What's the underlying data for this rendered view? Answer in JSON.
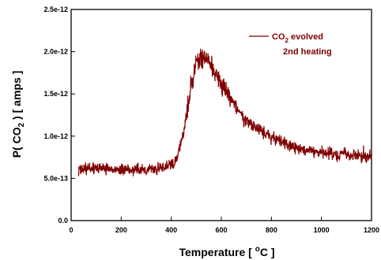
{
  "chart_data": {
    "type": "line",
    "xlabel": "Temperature   [ °C ]",
    "xlabel_parts": {
      "main": "Temperature   [ ",
      "sup": "o",
      "unit": "C ]"
    },
    "ylabel": "P( CO₂ )    [ amps ]",
    "ylabel_parts": {
      "left": "P( CO",
      "sub": "2",
      "right": " )",
      "unit": "[ amps ]"
    },
    "xlim": [
      0,
      1200
    ],
    "ylim": [
      0,
      2.5e-12
    ],
    "x_ticks": [
      0,
      200,
      400,
      600,
      800,
      1000,
      1200
    ],
    "x_tick_labels": [
      "0",
      "200",
      "400",
      "600",
      "800",
      "1000",
      "1200"
    ],
    "y_ticks": [
      0,
      5e-13,
      1e-12,
      1.5e-12,
      2e-12,
      2.5e-12
    ],
    "y_tick_labels": [
      "0.0",
      "5.0e-13",
      "1.0e-12",
      "1.5e-12",
      "2.0e-12",
      "2.5e-12"
    ],
    "grid": false,
    "legend": {
      "placement": "top-right",
      "text_line1_main": "CO",
      "text_line1_sub": "2",
      "text_line1_rest": " evolved",
      "text_line2": "2nd heating"
    },
    "series": [
      {
        "name": "CO₂ evolved 2nd heating",
        "color": "#800000",
        "x": [
          30,
          100,
          200,
          300,
          380,
          420,
          450,
          480,
          500,
          520,
          540,
          560,
          600,
          650,
          700,
          800,
          900,
          1000,
          1100,
          1200
        ],
        "y": [
          6e-13,
          6.2e-13,
          6e-13,
          6e-13,
          6.3e-13,
          7e-13,
          1.05e-12,
          1.6e-12,
          1.9e-12,
          1.92e-12,
          1.95e-12,
          1.85e-12,
          1.6e-12,
          1.38e-12,
          1.18e-12,
          9.8e-13,
          8.6e-13,
          8e-13,
          7.8e-13,
          7.6e-13
        ],
        "noise_amplitude": 6e-14
      }
    ]
  }
}
